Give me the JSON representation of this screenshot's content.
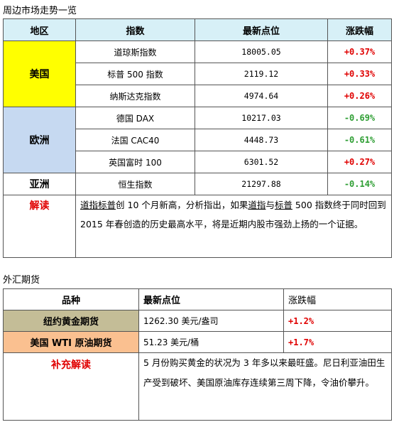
{
  "section1_title": "周边市场走势一览",
  "table1": {
    "headers": [
      "地区",
      "指数",
      "最新点位",
      "涨跌幅"
    ],
    "regions": {
      "us": "美国",
      "eu": "欧洲",
      "asia": "亚洲"
    },
    "rows": [
      {
        "index": "道琼斯指数",
        "value": "18005.05",
        "change": "+0.37%",
        "direction": "up"
      },
      {
        "index": "标普 500 指数",
        "value": "2119.12",
        "change": "+0.33%",
        "direction": "up"
      },
      {
        "index": "纳斯达克指数",
        "value": "4974.64",
        "change": "+0.26%",
        "direction": "up"
      },
      {
        "index": "德国 DAX",
        "value": "10217.03",
        "change": "-0.69%",
        "direction": "down"
      },
      {
        "index": "法国 CAC40",
        "value": "4448.73",
        "change": "-0.61%",
        "direction": "down"
      },
      {
        "index": "英国富时 100",
        "value": "6301.52",
        "change": "+0.27%",
        "direction": "up"
      },
      {
        "index": "恒生指数",
        "value": "21297.88",
        "change": "-0.14%",
        "direction": "down"
      }
    ],
    "interpretation_label": "解读",
    "interpretation": {
      "p1": "道指",
      "p2": "标普",
      "p3": "创 10 个月新高，分析指出，如果",
      "p4": "道指",
      "p5": "与",
      "p6": "标普",
      "p7": " 500 指数终于同时回到 2015 年春创造的历史最高水平，将是近期内股市强劲上扬的一个证据。"
    }
  },
  "section2_title": "外汇期货",
  "table2": {
    "headers": [
      "品种",
      "最新点位",
      "涨跌幅"
    ],
    "rows": [
      {
        "name": "纽约黄金期货",
        "value": "1262.30 美元/盎司",
        "change": "+1.2%"
      },
      {
        "name": "美国 WTI 原油期货",
        "value": "51.23 美元/桶",
        "change": "+1.7%"
      }
    ],
    "supplement_label": "补充解读",
    "supplement_text": "5 月份购买黄金的状况为 3 年多以来最旺盛。尼日利亚油田生产受到破坏、美国原油库存连续第三周下降，令油价攀升。"
  },
  "colors": {
    "header_bg": "#d7f0f7",
    "us_bg": "#ffff00",
    "eu_bg": "#c6d9f1",
    "gold_bg": "#c4bd97",
    "oil_bg": "#fac090",
    "up": "#e00000",
    "down": "#2e9e33"
  }
}
